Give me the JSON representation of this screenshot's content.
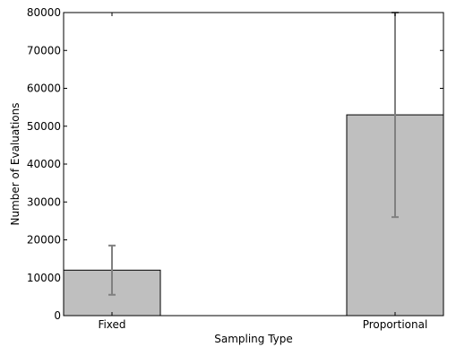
{
  "chart_data": {
    "type": "bar",
    "categories": [
      "Fixed",
      "Proportional"
    ],
    "values": [
      12000,
      53000
    ],
    "error_bars": [
      {
        "low": 5500,
        "high": 18500
      },
      {
        "low": 26000,
        "high": 80000
      }
    ],
    "xlabel": "Sampling Type",
    "ylabel": "Number of Evaluations",
    "ylim": [
      0,
      80000
    ],
    "yticks": [
      0,
      10000,
      20000,
      30000,
      40000,
      50000,
      60000,
      70000,
      80000
    ],
    "grid": false,
    "bar_color": "#bfbfbf",
    "error_color": "#808080"
  }
}
